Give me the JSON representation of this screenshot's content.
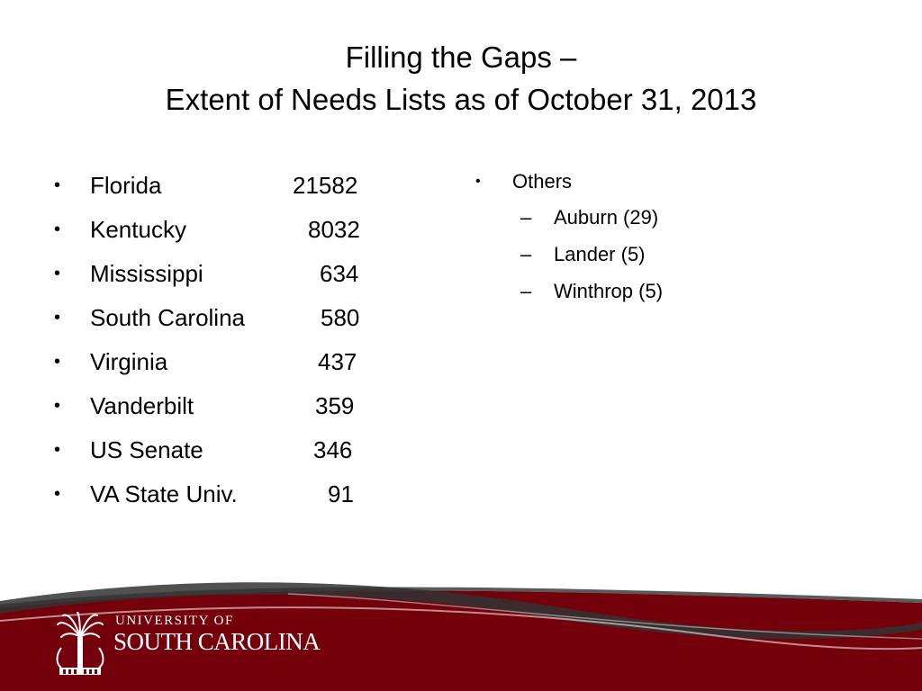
{
  "title": {
    "line1": "Filling the Gaps –",
    "line2": "Extent of Needs Lists as of October 31, 2013"
  },
  "needs_list": [
    {
      "label": "Florida",
      "value": "21582"
    },
    {
      "label": "Kentucky",
      "value": "8032"
    },
    {
      "label": "Mississippi",
      "value": "634"
    },
    {
      "label": "South Carolina",
      "value": "580"
    },
    {
      "label": "Virginia",
      "value": "437"
    },
    {
      "label": "Vanderbilt",
      "value": "359"
    },
    {
      "label": "US Senate",
      "value": "346"
    },
    {
      "label": "VA State Univ.",
      "value": "91"
    }
  ],
  "others": {
    "label": "Others",
    "items": [
      "Auburn (29)",
      "Lander (5)",
      "Winthrop (5)"
    ]
  },
  "footer": {
    "logo_line1": "UNIVERSITY OF",
    "logo_line2": "SOUTH CAROLINA",
    "brand_color": "#73000a"
  },
  "symbols": {
    "bullet": "•",
    "dash": "–"
  }
}
